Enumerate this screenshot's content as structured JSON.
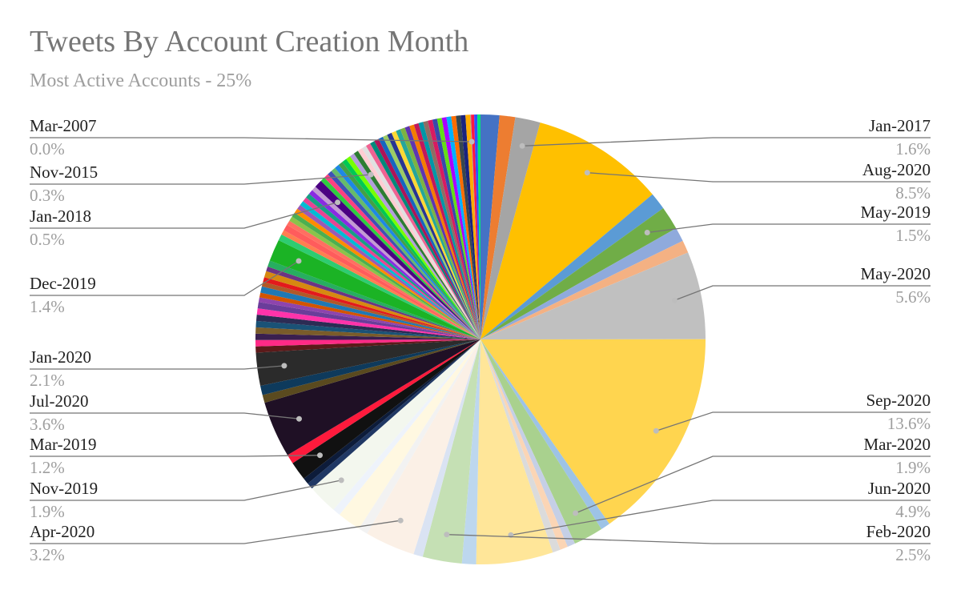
{
  "chart_data": {
    "type": "pie",
    "title": "Tweets By Account Creation Month",
    "subtitle": "Most Active Accounts - 25%",
    "label_position": "outside with leader lines",
    "slices": [
      {
        "label": "",
        "value": 1.2,
        "color": "#4472c4"
      },
      {
        "label": "",
        "value": 1.0,
        "color": "#ed7d31"
      },
      {
        "label": "Jan-2017",
        "value": 1.6,
        "color": "#a5a5a5",
        "pct": "1.6%",
        "labeled": "right"
      },
      {
        "label": "Aug-2020",
        "value": 8.5,
        "color": "#ffc000",
        "pct": "8.5%",
        "labeled": "right"
      },
      {
        "label": "",
        "value": 1.1,
        "color": "#5b9bd5"
      },
      {
        "label": "May-2019",
        "value": 1.5,
        "color": "#70ad47",
        "pct": "1.5%",
        "labeled": "right"
      },
      {
        "label": "",
        "value": 0.9,
        "color": "#8faadc"
      },
      {
        "label": "",
        "value": 0.8,
        "color": "#f4b183"
      },
      {
        "label": "May-2020",
        "value": 5.6,
        "color": "#c0c0c0",
        "pct": "5.6%",
        "labeled": "right"
      },
      {
        "label": "Sep-2020",
        "value": 13.6,
        "color": "#ffd54f",
        "pct": "13.6%",
        "labeled": "right"
      },
      {
        "label": "",
        "value": 0.6,
        "color": "#9dc3e6"
      },
      {
        "label": "Mar-2020",
        "value": 1.9,
        "color": "#a9d18e",
        "pct": "1.9%",
        "labeled": "right"
      },
      {
        "label": "",
        "value": 0.5,
        "color": "#c5cfe6"
      },
      {
        "label": "",
        "value": 0.5,
        "color": "#fbd5b5"
      },
      {
        "label": "",
        "value": 0.5,
        "color": "#dbdbdb"
      },
      {
        "label": "Jun-2020",
        "value": 4.9,
        "color": "#ffe699",
        "pct": "4.9%",
        "labeled": "right"
      },
      {
        "label": "",
        "value": 0.9,
        "color": "#bdd7ee"
      },
      {
        "label": "Feb-2020",
        "value": 2.5,
        "color": "#c5e0b4",
        "pct": "2.5%",
        "labeled": "right"
      },
      {
        "label": "",
        "value": 0.6,
        "color": "#dae3f3"
      },
      {
        "label": "Apr-2020",
        "value": 3.2,
        "color": "#fbf0e6",
        "pct": "3.2%",
        "labeled": "left"
      },
      {
        "label": "",
        "value": 0.6,
        "color": "#f2f2f2"
      },
      {
        "label": "",
        "value": 1.5,
        "color": "#fff8e1"
      },
      {
        "label": "",
        "value": 0.5,
        "color": "#eef3fb"
      },
      {
        "label": "Nov-2019",
        "value": 1.9,
        "color": "#f3f7ee",
        "pct": "1.9%",
        "labeled": "left"
      },
      {
        "label": "",
        "value": 0.4,
        "color": "#203864"
      },
      {
        "label": "",
        "value": 0.4,
        "color": "#0d1c3a"
      },
      {
        "label": "Mar-2019",
        "value": 1.2,
        "color": "#111111",
        "pct": "1.2%",
        "labeled": "left"
      },
      {
        "label": "",
        "value": 0.6,
        "color": "#ff1a3c"
      },
      {
        "label": "Jul-2020",
        "value": 3.6,
        "color": "#1f1025",
        "pct": "3.6%",
        "labeled": "left"
      },
      {
        "label": "",
        "value": 0.5,
        "color": "#5a4a1f"
      },
      {
        "label": "",
        "value": 0.6,
        "color": "#0e3a5c"
      },
      {
        "label": "Jan-2020",
        "value": 2.1,
        "color": "#2b2b2b",
        "pct": "2.1%",
        "labeled": "left"
      },
      {
        "label": "",
        "value": 0.4,
        "color": "#5c1a1a"
      },
      {
        "label": "",
        "value": 0.4,
        "color": "#ff2a86"
      },
      {
        "label": "",
        "value": 0.4,
        "color": "#3a1f4f"
      },
      {
        "label": "",
        "value": 0.4,
        "color": "#7a5c2a"
      },
      {
        "label": "",
        "value": 0.4,
        "color": "#1a5276"
      },
      {
        "label": "",
        "value": 0.4,
        "color": "#2c2c54"
      },
      {
        "label": "",
        "value": 0.4,
        "color": "#ff33aa"
      },
      {
        "label": "",
        "value": 0.4,
        "color": "#6a3d9a"
      },
      {
        "label": "",
        "value": 0.3,
        "color": "#8e44ad"
      },
      {
        "label": "",
        "value": 0.3,
        "color": "#d35400"
      },
      {
        "label": "",
        "value": 0.4,
        "color": "#1f78b4"
      },
      {
        "label": "",
        "value": 0.3,
        "color": "#b15928"
      },
      {
        "label": "",
        "value": 0.3,
        "color": "#e31a1c"
      },
      {
        "label": "",
        "value": 0.4,
        "color": "#d68910"
      },
      {
        "label": "",
        "value": 0.3,
        "color": "#6c3483"
      },
      {
        "label": "",
        "value": 0.4,
        "color": "#27ae60"
      },
      {
        "label": "Dec-2019",
        "value": 1.4,
        "color": "#1bb325",
        "pct": "1.4%",
        "labeled": "left"
      },
      {
        "label": "",
        "value": 0.4,
        "color": "#2ecc71"
      },
      {
        "label": "",
        "value": 0.3,
        "color": "#ff7f50"
      },
      {
        "label": "",
        "value": 0.4,
        "color": "#ff5c5c"
      },
      {
        "label": "",
        "value": 0.3,
        "color": "#ff6f61"
      },
      {
        "label": "",
        "value": 0.3,
        "color": "#8bc34a"
      },
      {
        "label": "",
        "value": 0.3,
        "color": "#4caf50"
      },
      {
        "label": "",
        "value": 0.3,
        "color": "#ff8c00"
      },
      {
        "label": "",
        "value": 0.3,
        "color": "#9b59b6"
      },
      {
        "label": "",
        "value": 0.3,
        "color": "#00bcd4"
      },
      {
        "label": "",
        "value": 0.3,
        "color": "#e84393"
      },
      {
        "label": "",
        "value": 0.3,
        "color": "#16a085"
      },
      {
        "label": "",
        "value": 0.3,
        "color": "#8a2be2"
      },
      {
        "label": "",
        "value": 0.3,
        "color": "#c39bd3"
      },
      {
        "label": "Jan-2018",
        "value": 0.5,
        "color": "#4b0082",
        "pct": "0.5%",
        "labeled": "left"
      },
      {
        "label": "",
        "value": 0.3,
        "color": "#2ecc40"
      },
      {
        "label": "",
        "value": 0.3,
        "color": "#ff4081"
      },
      {
        "label": "",
        "value": 0.3,
        "color": "#3f51b5"
      },
      {
        "label": "",
        "value": 0.3,
        "color": "#66bb6a"
      },
      {
        "label": "",
        "value": 0.3,
        "color": "#1e88e5"
      },
      {
        "label": "",
        "value": 0.3,
        "color": "#43a047"
      },
      {
        "label": "",
        "value": 0.3,
        "color": "#00c853"
      },
      {
        "label": "",
        "value": 0.3,
        "color": "#76ff03"
      },
      {
        "label": "",
        "value": 0.3,
        "color": "#b39ddb"
      },
      {
        "label": "Nov-2015",
        "value": 0.3,
        "color": "#2e7d32",
        "pct": "0.3%",
        "labeled": "left"
      },
      {
        "label": "",
        "value": 0.3,
        "color": "#ffcdd2"
      },
      {
        "label": "",
        "value": 0.3,
        "color": "#e0e0e0"
      },
      {
        "label": "",
        "value": 0.3,
        "color": "#f06292"
      },
      {
        "label": "",
        "value": 0.3,
        "color": "#00897b"
      },
      {
        "label": "",
        "value": 0.3,
        "color": "#ad1457"
      },
      {
        "label": "",
        "value": 0.3,
        "color": "#1565c0"
      },
      {
        "label": "",
        "value": 0.3,
        "color": "#9ccc65"
      },
      {
        "label": "",
        "value": 0.3,
        "color": "#283593"
      },
      {
        "label": "",
        "value": 0.3,
        "color": "#fdd835"
      },
      {
        "label": "",
        "value": 0.3,
        "color": "#26a69a"
      },
      {
        "label": "",
        "value": 0.3,
        "color": "#7cb342"
      },
      {
        "label": "",
        "value": 0.3,
        "color": "#5e35b1"
      },
      {
        "label": "",
        "value": 0.3,
        "color": "#f57c00"
      },
      {
        "label": "",
        "value": 0.3,
        "color": "#c2185b"
      },
      {
        "label": "",
        "value": 0.3,
        "color": "#0097a7"
      },
      {
        "label": "",
        "value": 0.3,
        "color": "#8d6e63"
      },
      {
        "label": "",
        "value": 0.3,
        "color": "#d81b60"
      },
      {
        "label": "",
        "value": 0.3,
        "color": "#3949ab"
      },
      {
        "label": "",
        "value": 0.3,
        "color": "#64dd17"
      },
      {
        "label": "",
        "value": 0.3,
        "color": "#aa00ff"
      },
      {
        "label": "",
        "value": 0.3,
        "color": "#00b0ff"
      },
      {
        "label": "",
        "value": 0.3,
        "color": "#ff6d00"
      },
      {
        "label": "",
        "value": 0.3,
        "color": "#37474f"
      },
      {
        "label": "",
        "value": 0.3,
        "color": "#1a237e"
      },
      {
        "label": "",
        "value": 0.3,
        "color": "#ffab00"
      },
      {
        "label": "Mar-2007",
        "value": 0.05,
        "color": "#9e9e9e",
        "pct": "0.0%",
        "labeled": "left"
      },
      {
        "label": "",
        "value": 0.2,
        "color": "#ff1744"
      },
      {
        "label": "",
        "value": 0.2,
        "color": "#304ffe"
      },
      {
        "label": "",
        "value": 0.2,
        "color": "#00e676"
      }
    ]
  }
}
